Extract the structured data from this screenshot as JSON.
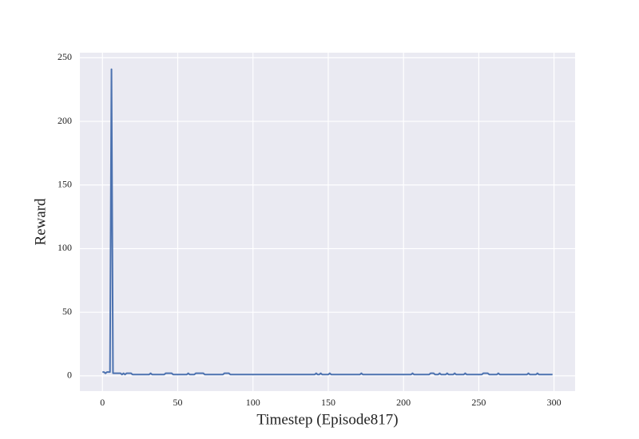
{
  "chart_data": {
    "type": "line",
    "x_label": "Timestep (Episode817)",
    "y_label": "Reward",
    "x": [
      0,
      1,
      2,
      3,
      4,
      5,
      6,
      7,
      8,
      9,
      10,
      11,
      12,
      13,
      14,
      15,
      16,
      17,
      18,
      19,
      20,
      21,
      22,
      23,
      24,
      25,
      26,
      27,
      28,
      29,
      30,
      31,
      32,
      33,
      34,
      35,
      36,
      37,
      38,
      39,
      40,
      41,
      42,
      43,
      44,
      45,
      46,
      47,
      48,
      49,
      50,
      51,
      52,
      53,
      54,
      55,
      56,
      57,
      58,
      59,
      60,
      61,
      62,
      63,
      64,
      65,
      66,
      67,
      68,
      69,
      70,
      71,
      72,
      73,
      74,
      75,
      76,
      77,
      78,
      79,
      80,
      81,
      82,
      83,
      84,
      85,
      86,
      87,
      88,
      89,
      90,
      91,
      92,
      93,
      94,
      95,
      96,
      97,
      98,
      99,
      100,
      101,
      102,
      103,
      104,
      105,
      106,
      107,
      108,
      109,
      110,
      111,
      112,
      113,
      114,
      115,
      116,
      117,
      118,
      119,
      120,
      121,
      122,
      123,
      124,
      125,
      126,
      127,
      128,
      129,
      130,
      131,
      132,
      133,
      134,
      135,
      136,
      137,
      138,
      139,
      140,
      141,
      142,
      143,
      144,
      145,
      146,
      147,
      148,
      149,
      150,
      151,
      152,
      153,
      154,
      155,
      156,
      157,
      158,
      159,
      160,
      161,
      162,
      163,
      164,
      165,
      166,
      167,
      168,
      169,
      170,
      171,
      172,
      173,
      174,
      175,
      176,
      177,
      178,
      179,
      180,
      181,
      182,
      183,
      184,
      185,
      186,
      187,
      188,
      189,
      190,
      191,
      192,
      193,
      194,
      195,
      196,
      197,
      198,
      199,
      200,
      201,
      202,
      203,
      204,
      205,
      206,
      207,
      208,
      209,
      210,
      211,
      212,
      213,
      214,
      215,
      216,
      217,
      218,
      219,
      220,
      221,
      222,
      223,
      224,
      225,
      226,
      227,
      228,
      229,
      230,
      231,
      232,
      233,
      234,
      235,
      236,
      237,
      238,
      239,
      240,
      241,
      242,
      243,
      244,
      245,
      246,
      247,
      248,
      249,
      250,
      251,
      252,
      253,
      254,
      255,
      256,
      257,
      258,
      259,
      260,
      261,
      262,
      263,
      264,
      265,
      266,
      267,
      268,
      269,
      270,
      271,
      272,
      273,
      274,
      275,
      276,
      277,
      278,
      279,
      280,
      281,
      282,
      283,
      284,
      285,
      286,
      287,
      288,
      289,
      290,
      291,
      292,
      293,
      294,
      295,
      296,
      297,
      298,
      299
    ],
    "series": [
      {
        "color": "#4c72b0",
        "values": [
          3,
          3,
          2,
          3,
          3,
          3,
          241,
          2,
          2,
          2,
          2,
          2,
          2,
          1,
          2,
          1,
          2,
          2,
          2,
          2,
          1,
          1,
          1,
          1,
          1,
          1,
          1,
          1,
          1,
          1,
          1,
          1,
          2,
          1,
          1,
          1,
          1,
          1,
          1,
          1,
          1,
          1,
          2,
          2,
          2,
          2,
          2,
          1,
          1,
          1,
          1,
          1,
          1,
          1,
          1,
          1,
          1,
          2,
          1,
          1,
          1,
          1,
          2,
          2,
          2,
          2,
          2,
          2,
          1,
          1,
          1,
          1,
          1,
          1,
          1,
          1,
          1,
          1,
          1,
          1,
          1,
          2,
          2,
          2,
          2,
          1,
          1,
          1,
          1,
          1,
          1,
          1,
          1,
          1,
          1,
          1,
          1,
          1,
          1,
          1,
          1,
          1,
          1,
          1,
          1,
          1,
          1,
          1,
          1,
          1,
          1,
          1,
          1,
          1,
          1,
          1,
          1,
          1,
          1,
          1,
          1,
          1,
          1,
          1,
          1,
          1,
          1,
          1,
          1,
          1,
          1,
          1,
          1,
          1,
          1,
          1,
          1,
          1,
          1,
          1,
          1,
          1,
          2,
          1,
          1,
          2,
          1,
          1,
          1,
          1,
          1,
          2,
          1,
          1,
          1,
          1,
          1,
          1,
          1,
          1,
          1,
          1,
          1,
          1,
          1,
          1,
          1,
          1,
          1,
          1,
          1,
          1,
          2,
          1,
          1,
          1,
          1,
          1,
          1,
          1,
          1,
          1,
          1,
          1,
          1,
          1,
          1,
          1,
          1,
          1,
          1,
          1,
          1,
          1,
          1,
          1,
          1,
          1,
          1,
          1,
          1,
          1,
          1,
          1,
          1,
          1,
          2,
          1,
          1,
          1,
          1,
          1,
          1,
          1,
          1,
          1,
          1,
          1,
          2,
          2,
          2,
          1,
          1,
          1,
          2,
          1,
          1,
          1,
          1,
          2,
          1,
          1,
          1,
          1,
          2,
          1,
          1,
          1,
          1,
          1,
          1,
          2,
          1,
          1,
          1,
          1,
          1,
          1,
          1,
          1,
          1,
          1,
          1,
          2,
          2,
          2,
          2,
          1,
          1,
          1,
          1,
          1,
          1,
          2,
          1,
          1,
          1,
          1,
          1,
          1,
          1,
          1,
          1,
          1,
          1,
          1,
          1,
          1,
          1,
          1,
          1,
          1,
          1,
          2,
          1,
          1,
          1,
          1,
          1,
          2,
          1,
          1,
          1,
          1,
          1,
          1,
          1,
          1,
          1,
          1
        ]
      }
    ],
    "xlim": [
      -15,
      314
    ],
    "ylim": [
      -12,
      254
    ],
    "xticks": [
      0,
      50,
      100,
      150,
      200,
      250,
      300
    ],
    "yticks": [
      0,
      50,
      100,
      150,
      200,
      250
    ],
    "grid": true
  }
}
